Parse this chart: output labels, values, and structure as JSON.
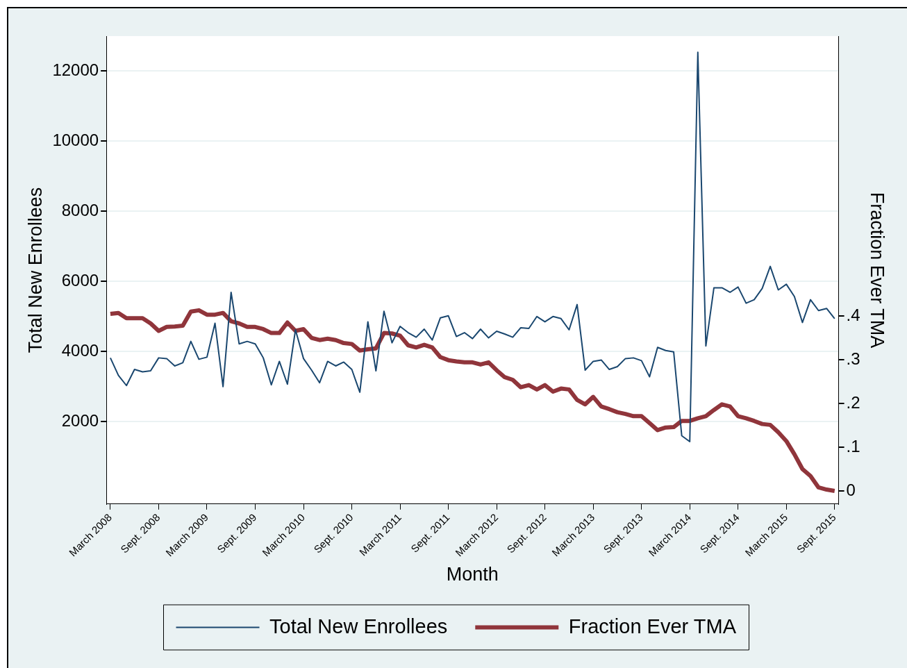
{
  "chart_data": {
    "type": "line",
    "xlabel": "Month",
    "ylabel": "Total New Enrollees",
    "y2label": "Fraction Ever TMA",
    "categories": [
      "March 2008",
      null,
      null,
      null,
      null,
      null,
      "Sept. 2008",
      null,
      null,
      null,
      null,
      null,
      "March 2009",
      null,
      null,
      null,
      null,
      null,
      "Sept. 2009",
      null,
      null,
      null,
      null,
      null,
      "March 2010",
      null,
      null,
      null,
      null,
      null,
      "Sept. 2010",
      null,
      null,
      null,
      null,
      null,
      "March 2011",
      null,
      null,
      null,
      null,
      null,
      "Sept. 2011",
      null,
      null,
      null,
      null,
      null,
      "March 2012",
      null,
      null,
      null,
      null,
      null,
      "Sept. 2012",
      null,
      null,
      null,
      null,
      null,
      "March 2013",
      null,
      null,
      null,
      null,
      null,
      "Sept. 2013",
      null,
      null,
      null,
      null,
      null,
      "March 2014",
      null,
      null,
      null,
      null,
      null,
      "Sept. 2014",
      null,
      null,
      null,
      null,
      null,
      "March 2015",
      null,
      null,
      null,
      null,
      null,
      "Sept. 2015"
    ],
    "series": [
      {
        "name": "Total New Enrollees",
        "color": "#1a476f",
        "values": [
          3820,
          3320,
          3030,
          3490,
          3420,
          3450,
          3820,
          3800,
          3590,
          3680,
          4290,
          3780,
          3840,
          4810,
          3000,
          5690,
          4220,
          4290,
          4220,
          3820,
          3050,
          3720,
          3070,
          4620,
          3800,
          3470,
          3110,
          3720,
          3590,
          3700,
          3490,
          2840,
          4850,
          3450,
          5150,
          4250,
          4720,
          4540,
          4410,
          4640,
          4330,
          4960,
          5020,
          4430,
          4540,
          4370,
          4640,
          4390,
          4580,
          4500,
          4410,
          4680,
          4660,
          5000,
          4850,
          5000,
          4940,
          4620,
          5340,
          3470,
          3720,
          3760,
          3490,
          3570,
          3800,
          3820,
          3740,
          3280,
          4120,
          4030,
          3990,
          1600,
          1430,
          12540,
          4160,
          5820,
          5820,
          5690,
          5840,
          5380,
          5480,
          5800,
          6430,
          5760,
          5920,
          5570,
          4830,
          5480,
          5170,
          5230,
          4940
        ]
      },
      {
        "name": "Fraction Ever TMA",
        "color": "#90353b",
        "axis": "y2",
        "values": [
          0.405,
          0.407,
          0.395,
          0.395,
          0.395,
          0.383,
          0.366,
          0.375,
          0.376,
          0.378,
          0.41,
          0.413,
          0.403,
          0.403,
          0.407,
          0.388,
          0.383,
          0.375,
          0.375,
          0.37,
          0.361,
          0.361,
          0.385,
          0.366,
          0.37,
          0.35,
          0.345,
          0.348,
          0.345,
          0.338,
          0.336,
          0.321,
          0.324,
          0.326,
          0.361,
          0.36,
          0.355,
          0.333,
          0.328,
          0.334,
          0.328,
          0.306,
          0.299,
          0.296,
          0.294,
          0.294,
          0.289,
          0.294,
          0.276,
          0.26,
          0.254,
          0.237,
          0.242,
          0.232,
          0.242,
          0.227,
          0.234,
          0.232,
          0.208,
          0.198,
          0.215,
          0.193,
          0.187,
          0.18,
          0.176,
          0.171,
          0.171,
          0.155,
          0.139,
          0.145,
          0.146,
          0.16,
          0.16,
          0.166,
          0.171,
          0.185,
          0.198,
          0.193,
          0.171,
          0.166,
          0.16,
          0.153,
          0.151,
          0.134,
          0.114,
          0.084,
          0.05,
          0.034,
          0.008,
          0.003,
          0
        ]
      }
    ],
    "ylim": [
      -350,
      13000
    ],
    "yticks": [
      2000,
      4000,
      6000,
      8000,
      10000,
      12000
    ],
    "y2lim": [
      -0.03,
      1.04
    ],
    "y2ticks": [
      {
        "value": 0,
        "label": "0"
      },
      {
        "value": 0.1,
        "label": ".1"
      },
      {
        "value": 0.2,
        "label": ".2"
      },
      {
        "value": 0.3,
        "label": ".3"
      },
      {
        "value": 0.4,
        "label": ".4"
      }
    ],
    "grid": "y",
    "legend": "bottom",
    "marker": "none",
    "line_style": "solid"
  }
}
